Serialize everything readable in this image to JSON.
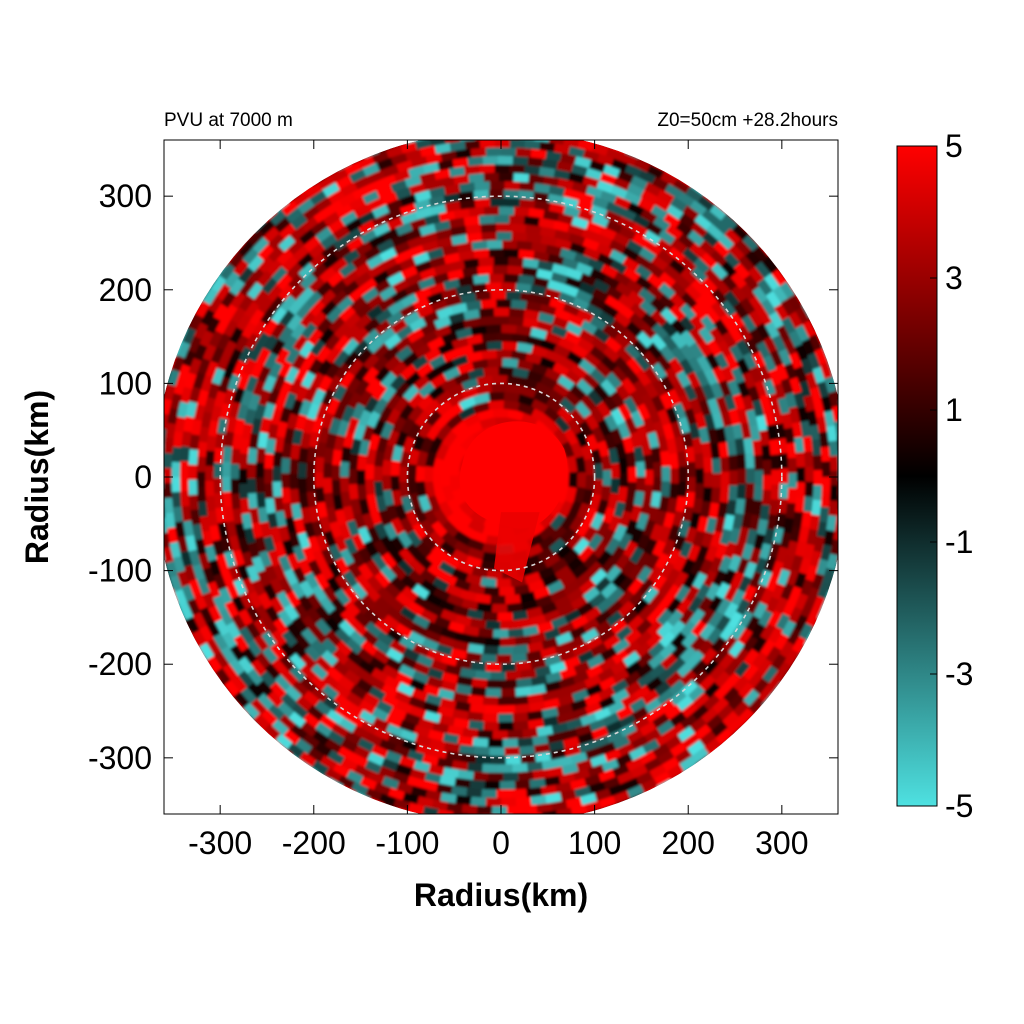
{
  "chart_data": {
    "type": "heatmap",
    "title_left": "PVU at  7000 m",
    "title_right": "Z0=50cm  +28.2hours",
    "xlabel": "Radius(km)",
    "ylabel": "Radius(km)",
    "xlim": [
      -360,
      360
    ],
    "ylim": [
      -360,
      360
    ],
    "x_ticks": [
      -300,
      -200,
      -100,
      0,
      100,
      200,
      300
    ],
    "y_ticks": [
      -300,
      -200,
      -100,
      0,
      100,
      200,
      300
    ],
    "x_tick_labels": [
      "-300",
      "-200",
      "-100",
      "0",
      "100",
      "200",
      "300"
    ],
    "y_tick_labels": [
      "-300",
      "-200",
      "-100",
      "0",
      "100",
      "200",
      "300"
    ],
    "domain_radius_km": 370,
    "reference_circles_km": [
      100,
      200,
      300
    ],
    "colorbar": {
      "range": [
        -5,
        5
      ],
      "tick_values": [
        5,
        3,
        1,
        -1,
        -3,
        -5
      ],
      "tick_labels": [
        "5",
        "3",
        "1",
        "-1",
        "-3",
        "-5"
      ],
      "colors": {
        "max": "#ff0000",
        "mid": "#000000",
        "min": "#4ee1e1"
      }
    },
    "features": {
      "core_value_pvu": 5,
      "core_radius_km": 75,
      "field": "alternating concentric bands of positive (red) and negative (cyan) PV"
    }
  }
}
